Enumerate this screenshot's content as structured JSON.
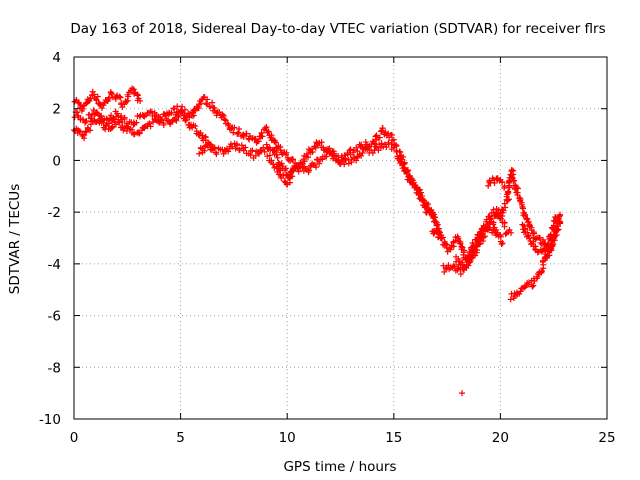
{
  "chart_data": {
    "type": "scatter",
    "title": "Day 163 of 2018, Sidereal Day-to-day VTEC variation (SDTVAR) for receiver flrs",
    "xlabel": "GPS time / hours",
    "ylabel": "SDTVAR / TECUs",
    "xlim": [
      0,
      25
    ],
    "ylim": [
      -10,
      4
    ],
    "xticks": [
      0,
      5,
      10,
      15,
      20,
      25
    ],
    "yticks": [
      4,
      2,
      0,
      -2,
      -4,
      -6,
      -8,
      -10
    ],
    "grid": true,
    "marker": "+",
    "color": "#ff0000",
    "series": [
      {
        "name": "SDTVAR",
        "tracks": [
          [
            [
              0.0,
              2.4
            ],
            [
              0.4,
              2.0
            ],
            [
              0.9,
              2.6
            ],
            [
              1.3,
              2.1
            ],
            [
              1.8,
              2.6
            ],
            [
              2.3,
              2.2
            ],
            [
              2.8,
              2.7
            ],
            [
              3.1,
              2.3
            ]
          ],
          [
            [
              0.0,
              1.8
            ],
            [
              0.5,
              1.5
            ],
            [
              1.0,
              1.9
            ],
            [
              1.5,
              1.5
            ],
            [
              2.0,
              1.8
            ],
            [
              2.5,
              1.4
            ],
            [
              3.0,
              1.6
            ],
            [
              3.5,
              1.8
            ],
            [
              4.0,
              1.6
            ],
            [
              4.5,
              1.9
            ],
            [
              5.0,
              2.0
            ],
            [
              5.5,
              1.7
            ],
            [
              6.0,
              2.4
            ],
            [
              6.5,
              2.1
            ],
            [
              7.0,
              1.6
            ],
            [
              7.5,
              1.2
            ],
            [
              8.0,
              1.0
            ],
            [
              8.5,
              0.7
            ],
            [
              9.0,
              1.2
            ],
            [
              9.5,
              0.6
            ],
            [
              10.0,
              0.2
            ],
            [
              10.5,
              -0.3
            ],
            [
              11.0,
              0.3
            ],
            [
              11.5,
              0.7
            ],
            [
              12.0,
              0.2
            ],
            [
              12.5,
              0.0
            ],
            [
              13.0,
              0.4
            ],
            [
              13.5,
              0.5
            ],
            [
              14.0,
              0.7
            ],
            [
              14.5,
              1.2
            ],
            [
              15.0,
              0.8
            ]
          ],
          [
            [
              0.0,
              1.2
            ],
            [
              0.4,
              0.9
            ],
            [
              0.8,
              1.4
            ],
            [
              1.2,
              1.6
            ],
            [
              1.6,
              1.2
            ],
            [
              2.0,
              1.5
            ],
            [
              2.5,
              1.2
            ],
            [
              3.0,
              1.0
            ],
            [
              3.5,
              1.4
            ],
            [
              4.0,
              1.6
            ],
            [
              4.5,
              1.4
            ],
            [
              5.0,
              1.9
            ],
            [
              5.5,
              1.3
            ],
            [
              6.0,
              1.0
            ],
            [
              6.5,
              0.4
            ],
            [
              7.0,
              0.3
            ],
            [
              7.5,
              0.6
            ],
            [
              8.0,
              0.4
            ],
            [
              8.5,
              0.2
            ],
            [
              9.0,
              0.5
            ],
            [
              9.5,
              0.2
            ],
            [
              10.0,
              -0.6
            ],
            [
              10.5,
              -0.2
            ],
            [
              11.0,
              -0.4
            ],
            [
              11.5,
              0.0
            ],
            [
              12.0,
              0.4
            ],
            [
              12.5,
              -0.1
            ],
            [
              13.0,
              0.0
            ],
            [
              13.5,
              0.3
            ],
            [
              14.0,
              0.4
            ],
            [
              14.5,
              0.6
            ],
            [
              15.0,
              0.5
            ]
          ],
          [
            [
              5.9,
              0.3
            ],
            [
              6.2,
              0.6
            ],
            [
              6.6,
              0.5
            ]
          ],
          [
            [
              9.1,
              0.1
            ],
            [
              9.6,
              -0.4
            ],
            [
              10.0,
              -0.9
            ],
            [
              10.3,
              -0.4
            ]
          ],
          [
            [
              15.0,
              0.6
            ],
            [
              15.4,
              0.0
            ],
            [
              15.8,
              -0.7
            ],
            [
              16.2,
              -1.2
            ],
            [
              16.6,
              -2.0
            ],
            [
              17.0,
              -2.4
            ]
          ],
          [
            [
              15.2,
              0.2
            ],
            [
              15.6,
              -0.5
            ],
            [
              16.0,
              -1.1
            ],
            [
              16.4,
              -1.6
            ],
            [
              16.8,
              -2.0
            ],
            [
              17.2,
              -3.0
            ]
          ],
          [
            [
              16.8,
              -2.7
            ],
            [
              17.2,
              -3.0
            ],
            [
              17.6,
              -3.5
            ],
            [
              18.0,
              -3.0
            ],
            [
              18.4,
              -3.8
            ],
            [
              18.8,
              -3.2
            ],
            [
              19.2,
              -2.6
            ],
            [
              19.6,
              -2.4
            ],
            [
              20.0,
              -2.0
            ],
            [
              20.4,
              -1.5
            ]
          ],
          [
            [
              17.3,
              -4.2
            ],
            [
              17.7,
              -4.1
            ],
            [
              18.1,
              -4.3
            ],
            [
              18.5,
              -4.0
            ],
            [
              18.9,
              -3.4
            ],
            [
              19.3,
              -2.8
            ],
            [
              19.7,
              -2.6
            ],
            [
              20.1,
              -3.2
            ]
          ],
          [
            [
              17.9,
              -3.8
            ],
            [
              18.3,
              -4.1
            ],
            [
              18.7,
              -3.6
            ],
            [
              19.1,
              -2.8
            ],
            [
              19.5,
              -2.2
            ],
            [
              19.8,
              -1.9
            ],
            [
              20.2,
              -2.4
            ]
          ],
          [
            [
              19.4,
              -0.9
            ],
            [
              19.8,
              -0.7
            ],
            [
              20.2,
              -1.0
            ]
          ],
          [
            [
              20.3,
              -1.5
            ],
            [
              20.5,
              -0.5
            ],
            [
              20.8,
              -1.2
            ],
            [
              21.2,
              -2.2
            ],
            [
              21.6,
              -2.9
            ],
            [
              22.0,
              -3.2
            ],
            [
              22.3,
              -3.6
            ],
            [
              22.6,
              -2.8
            ],
            [
              22.8,
              -2.1
            ]
          ],
          [
            [
              20.5,
              -5.3
            ],
            [
              20.8,
              -5.1
            ],
            [
              21.2,
              -4.9
            ],
            [
              21.6,
              -4.7
            ],
            [
              21.9,
              -4.3
            ],
            [
              22.2,
              -3.6
            ],
            [
              22.5,
              -3.0
            ],
            [
              22.8,
              -2.4
            ]
          ],
          [
            [
              21.0,
              -2.5
            ],
            [
              21.4,
              -3.1
            ],
            [
              21.8,
              -3.5
            ],
            [
              22.2,
              -3.3
            ],
            [
              22.6,
              -2.2
            ]
          ],
          [
            [
              20.2,
              -2.7
            ],
            [
              20.5,
              -2.8
            ]
          ]
        ],
        "isolated_points": [
          [
            18.2,
            -9.0
          ],
          [
            16.9,
            -2.8
          ],
          [
            20.6,
            -0.4
          ]
        ]
      }
    ]
  }
}
